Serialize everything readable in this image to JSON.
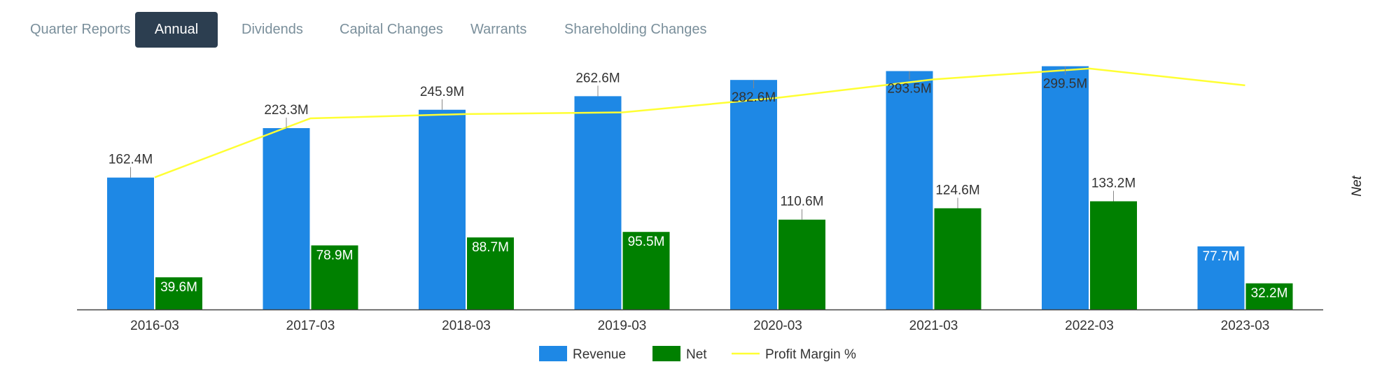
{
  "tabs": [
    {
      "label": "Quarter Reports",
      "active": false
    },
    {
      "label": "Annual",
      "active": true
    },
    {
      "label": "Dividends",
      "active": false
    },
    {
      "label": "Capital Changes",
      "active": false
    },
    {
      "label": "Warrants",
      "active": false
    },
    {
      "label": "Shareholding Changes",
      "active": false
    }
  ],
  "colors": {
    "revenue": "#1e88e5",
    "net": "#008000",
    "margin": "#ffff33",
    "axis": "#444444",
    "tab_active_bg": "#2c3e50"
  },
  "chart_data": {
    "type": "bar",
    "title": "",
    "categories": [
      "2016-03",
      "2017-03",
      "2018-03",
      "2019-03",
      "2020-03",
      "2021-03",
      "2022-03",
      "2023-03"
    ],
    "series": [
      {
        "name": "Revenue",
        "type": "bar",
        "values": [
          162.4,
          223.3,
          245.9,
          262.6,
          282.6,
          293.5,
          299.5,
          77.7
        ],
        "labels": [
          "162.4M",
          "223.3M",
          "245.9M",
          "262.6M",
          "282.6M",
          "293.5M",
          "299.5M",
          "77.7M"
        ]
      },
      {
        "name": "Net",
        "type": "bar",
        "values": [
          39.6,
          78.9,
          88.7,
          95.5,
          110.6,
          124.6,
          133.2,
          32.2
        ],
        "labels": [
          "39.6M",
          "78.9M",
          "88.7M",
          "95.5M",
          "110.6M",
          "124.6M",
          "133.2M",
          "32.2M"
        ]
      },
      {
        "name": "Profit Margin %",
        "type": "line",
        "values": [
          24.4,
          35.3,
          36.1,
          36.4,
          39.1,
          42.5,
          44.5,
          41.4
        ]
      }
    ],
    "ylim": [
      0,
      300
    ],
    "ylim_margin": [
      0,
      45
    ],
    "y2label": "Net",
    "legend_position": "bottom-center",
    "grid": false
  }
}
